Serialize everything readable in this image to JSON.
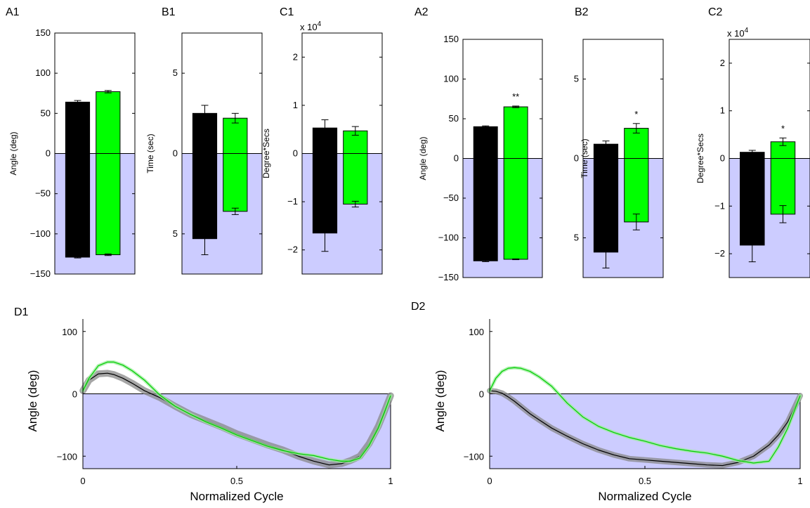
{
  "colors": {
    "shade": "#ccccff",
    "bar_black": "#000000",
    "bar_green": "#00ff00",
    "line_black": "#000000",
    "line_green": "#00cc00",
    "band_black": "#888888",
    "band_green": "#99ee99"
  },
  "chart_data": [
    {
      "panel": "A1",
      "type": "bar",
      "ylabel": "Angle (deg)",
      "ylim": [
        -150,
        150
      ],
      "yticks": [
        -150,
        -100,
        -50,
        0,
        50,
        100,
        150
      ],
      "yticklabels": [
        "−150",
        "−100",
        "−50",
        "0",
        "50",
        "100",
        "150"
      ],
      "exponent_label": "",
      "shaded_negative": true,
      "series": [
        {
          "color": "black",
          "positive": 64,
          "positive_err": 2,
          "negative": -129,
          "negative_err": 1
        },
        {
          "color": "green",
          "positive": 77,
          "positive_err": 1.5,
          "negative": -126,
          "negative_err": 1
        }
      ],
      "significance": ""
    },
    {
      "panel": "B1",
      "type": "bar",
      "ylabel": "Time (sec)",
      "ylim": [
        -7.5,
        7.5
      ],
      "yticks": [
        -5,
        0,
        5
      ],
      "yticklabels": [
        "5",
        "0",
        "5"
      ],
      "exponent_label": "",
      "shaded_negative": true,
      "series": [
        {
          "color": "black",
          "positive": 2.5,
          "positive_err": 0.5,
          "negative": -5.3,
          "negative_err": 1.0
        },
        {
          "color": "green",
          "positive": 2.2,
          "positive_err": 0.3,
          "negative": -3.6,
          "negative_err": 0.2
        }
      ],
      "significance": ""
    },
    {
      "panel": "C1",
      "type": "bar",
      "ylabel": "Degree*Secs",
      "ylim": [
        -2.5,
        2.5
      ],
      "yticks": [
        -2,
        -1,
        0,
        1,
        2
      ],
      "yticklabels": [
        "−2",
        "−1",
        "0",
        "1",
        "2"
      ],
      "exponent_label": "x 10^4",
      "shaded_negative": true,
      "series": [
        {
          "color": "black",
          "positive": 0.53,
          "positive_err": 0.17,
          "negative": -1.65,
          "negative_err": 0.38
        },
        {
          "color": "green",
          "positive": 0.47,
          "positive_err": 0.09,
          "negative": -1.05,
          "negative_err": 0.06
        }
      ],
      "significance": ""
    },
    {
      "panel": "A2",
      "type": "bar",
      "ylabel": "Angle (deg)",
      "ylim": [
        -150,
        150
      ],
      "yticks": [
        -150,
        -100,
        -50,
        0,
        50,
        100,
        150
      ],
      "yticklabels": [
        "−150",
        "−100",
        "−50",
        "0",
        "50",
        "100",
        "150"
      ],
      "exponent_label": "",
      "shaded_negative": true,
      "series": [
        {
          "color": "black",
          "positive": 40,
          "positive_err": 1,
          "negative": -129,
          "negative_err": 1
        },
        {
          "color": "green",
          "positive": 65,
          "positive_err": 1,
          "negative": -127,
          "negative_err": 0.5
        }
      ],
      "significance": "**"
    },
    {
      "panel": "B2",
      "type": "bar",
      "ylabel": "Time (sec)",
      "ylim": [
        -7.5,
        7.5
      ],
      "yticks": [
        -5,
        0,
        5
      ],
      "yticklabels": [
        "5",
        "0",
        "5"
      ],
      "exponent_label": "",
      "shaded_negative": true,
      "series": [
        {
          "color": "black",
          "positive": 0.9,
          "positive_err": 0.2,
          "negative": -5.9,
          "negative_err": 1.0
        },
        {
          "color": "green",
          "positive": 1.9,
          "positive_err": 0.3,
          "negative": -4.0,
          "negative_err": 0.5
        }
      ],
      "significance": "*"
    },
    {
      "panel": "C2",
      "type": "bar",
      "ylabel": "Degree*Secs",
      "ylim": [
        -2.5,
        2.5
      ],
      "yticks": [
        -2,
        -1,
        0,
        1,
        2
      ],
      "yticklabels": [
        "−2",
        "−1",
        "0",
        "1",
        "2"
      ],
      "exponent_label": "x 10^4",
      "shaded_negative": true,
      "series": [
        {
          "color": "black",
          "positive": 0.13,
          "positive_err": 0.04,
          "negative": -1.82,
          "negative_err": 0.35
        },
        {
          "color": "green",
          "positive": 0.35,
          "positive_err": 0.08,
          "negative": -1.17,
          "negative_err": 0.18
        }
      ],
      "significance": "*"
    },
    {
      "panel": "D1",
      "type": "line",
      "xlabel": "Normalized Cycle",
      "ylabel": "Angle (deg)",
      "xlim": [
        0,
        1
      ],
      "ylim": [
        -120,
        120
      ],
      "xticks": [
        0,
        0.5,
        1
      ],
      "xticklabels": [
        "0",
        "0.5",
        "1"
      ],
      "yticks": [
        -100,
        0,
        100
      ],
      "yticklabels": [
        "−100",
        "0",
        "100"
      ],
      "shaded_negative": true,
      "series": [
        {
          "color": "green",
          "band": 3,
          "x": [
            0,
            0.02,
            0.05,
            0.08,
            0.1,
            0.13,
            0.16,
            0.2,
            0.25,
            0.3,
            0.35,
            0.4,
            0.45,
            0.5,
            0.55,
            0.6,
            0.65,
            0.7,
            0.75,
            0.8,
            0.84,
            0.87,
            0.9,
            0.93,
            0.96,
            0.98,
            1.0
          ],
          "y": [
            5,
            25,
            45,
            51,
            51,
            46,
            37,
            22,
            -2,
            -20,
            -33,
            -45,
            -55,
            -66,
            -75,
            -84,
            -91,
            -96,
            -99,
            -105,
            -108,
            -108,
            -103,
            -83,
            -55,
            -30,
            -3
          ]
        },
        {
          "color": "black",
          "band": 6,
          "x": [
            0,
            0.02,
            0.05,
            0.08,
            0.1,
            0.13,
            0.16,
            0.2,
            0.25,
            0.3,
            0.35,
            0.4,
            0.45,
            0.5,
            0.55,
            0.6,
            0.65,
            0.7,
            0.75,
            0.8,
            0.84,
            0.87,
            0.9,
            0.93,
            0.96,
            0.98,
            1.0
          ],
          "y": [
            5,
            22,
            32,
            33,
            31,
            25,
            17,
            5,
            -6,
            -20,
            -33,
            -43,
            -53,
            -64,
            -73,
            -82,
            -90,
            -100,
            -108,
            -114,
            -112,
            -107,
            -100,
            -80,
            -52,
            -28,
            -3
          ]
        }
      ]
    },
    {
      "panel": "D2",
      "type": "line",
      "xlabel": "Normalized Cycle",
      "ylabel": "Angle (deg)",
      "xlim": [
        0,
        1
      ],
      "ylim": [
        -120,
        120
      ],
      "xticks": [
        0,
        0.5,
        1
      ],
      "xticklabels": [
        "0",
        "0.5",
        "1"
      ],
      "yticks": [
        -100,
        0,
        100
      ],
      "yticklabels": [
        "−100",
        "0",
        "100"
      ],
      "shaded_negative": true,
      "series": [
        {
          "color": "green",
          "band": 3,
          "x": [
            0,
            0.02,
            0.04,
            0.06,
            0.08,
            0.1,
            0.13,
            0.16,
            0.2,
            0.25,
            0.3,
            0.35,
            0.4,
            0.45,
            0.5,
            0.55,
            0.6,
            0.65,
            0.7,
            0.75,
            0.8,
            0.85,
            0.9,
            0.93,
            0.96,
            1.0
          ],
          "y": [
            5,
            25,
            36,
            41,
            42,
            41,
            36,
            27,
            12,
            -15,
            -37,
            -52,
            -62,
            -70,
            -76,
            -83,
            -88,
            -92,
            -95,
            -100,
            -107,
            -111,
            -108,
            -85,
            -55,
            -3
          ]
        },
        {
          "color": "black",
          "band": 5,
          "x": [
            0,
            0.02,
            0.04,
            0.06,
            0.08,
            0.1,
            0.13,
            0.16,
            0.2,
            0.25,
            0.3,
            0.35,
            0.4,
            0.45,
            0.5,
            0.55,
            0.6,
            0.65,
            0.7,
            0.75,
            0.8,
            0.85,
            0.9,
            0.93,
            0.96,
            1.0
          ],
          "y": [
            5,
            4,
            1,
            -5,
            -12,
            -20,
            -32,
            -42,
            -55,
            -68,
            -80,
            -90,
            -98,
            -104,
            -106,
            -108,
            -110,
            -112,
            -114,
            -115,
            -110,
            -100,
            -82,
            -66,
            -45,
            -3
          ]
        }
      ]
    }
  ]
}
